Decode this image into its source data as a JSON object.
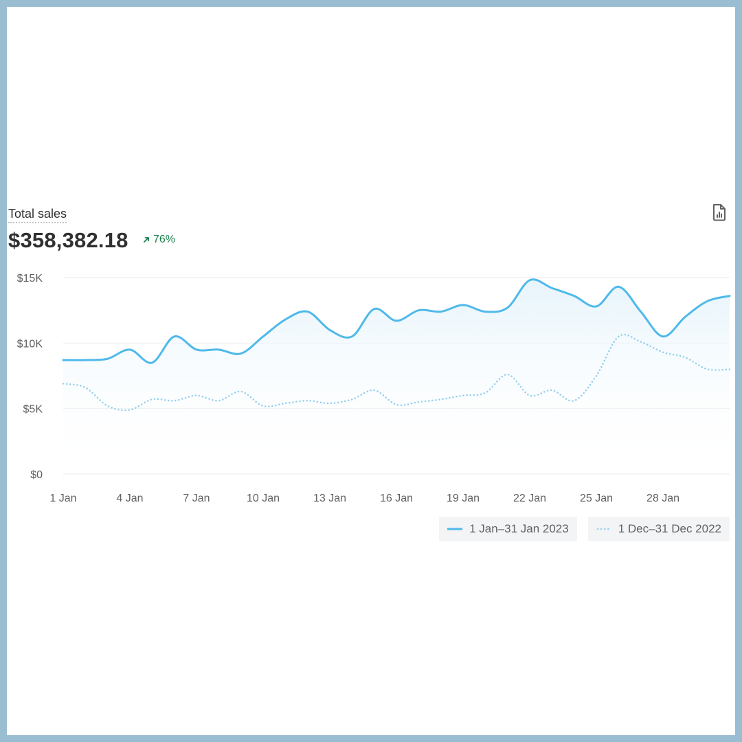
{
  "card": {
    "title": "Total sales",
    "total_value": "$358,382.18",
    "change_text": "76%",
    "change_direction": "up",
    "change_color": "#1a7f4b",
    "report_icon": "file-chart-icon"
  },
  "chart_data": {
    "type": "line",
    "title": "Total sales",
    "xlabel": "",
    "ylabel": "",
    "x": [
      1,
      2,
      3,
      4,
      5,
      6,
      7,
      8,
      9,
      10,
      11,
      12,
      13,
      14,
      15,
      16,
      17,
      18,
      19,
      20,
      21,
      22,
      23,
      24,
      25,
      26,
      27,
      28,
      29,
      30,
      31
    ],
    "x_tick_labels": [
      "1 Jan",
      "4 Jan",
      "7 Jan",
      "10 Jan",
      "13 Jan",
      "16 Jan",
      "19 Jan",
      "22 Jan",
      "25 Jan",
      "28 Jan"
    ],
    "x_tick_positions": [
      1,
      4,
      7,
      10,
      13,
      16,
      19,
      22,
      25,
      28
    ],
    "ylim": [
      0,
      15000
    ],
    "y_ticks": [
      0,
      5000,
      10000,
      15000
    ],
    "y_tick_labels": [
      "$0",
      "$5K",
      "$10K",
      "$15K"
    ],
    "grid": true,
    "legend_position": "bottom-right",
    "series": [
      {
        "name": "1 Jan–31 Jan 2023",
        "style": "solid",
        "color": "#4fb9ea",
        "values": [
          8700,
          8700,
          8800,
          9500,
          8500,
          10500,
          9500,
          9500,
          9200,
          10500,
          11800,
          12400,
          11000,
          10500,
          12600,
          11700,
          12500,
          12400,
          12900,
          12400,
          12700,
          14800,
          14200,
          13600,
          12800,
          14300,
          12400,
          10500,
          12000,
          13200,
          13600
        ]
      },
      {
        "name": "1 Dec–31 Dec 2022",
        "style": "dotted",
        "color": "#93d0ef",
        "values": [
          6900,
          6600,
          5200,
          4900,
          5700,
          5600,
          6000,
          5600,
          6300,
          5200,
          5400,
          5600,
          5400,
          5700,
          6400,
          5300,
          5500,
          5700,
          6000,
          6200,
          7600,
          6000,
          6400,
          5600,
          7500,
          10500,
          10100,
          9300,
          8900,
          8000,
          8000
        ]
      }
    ]
  }
}
